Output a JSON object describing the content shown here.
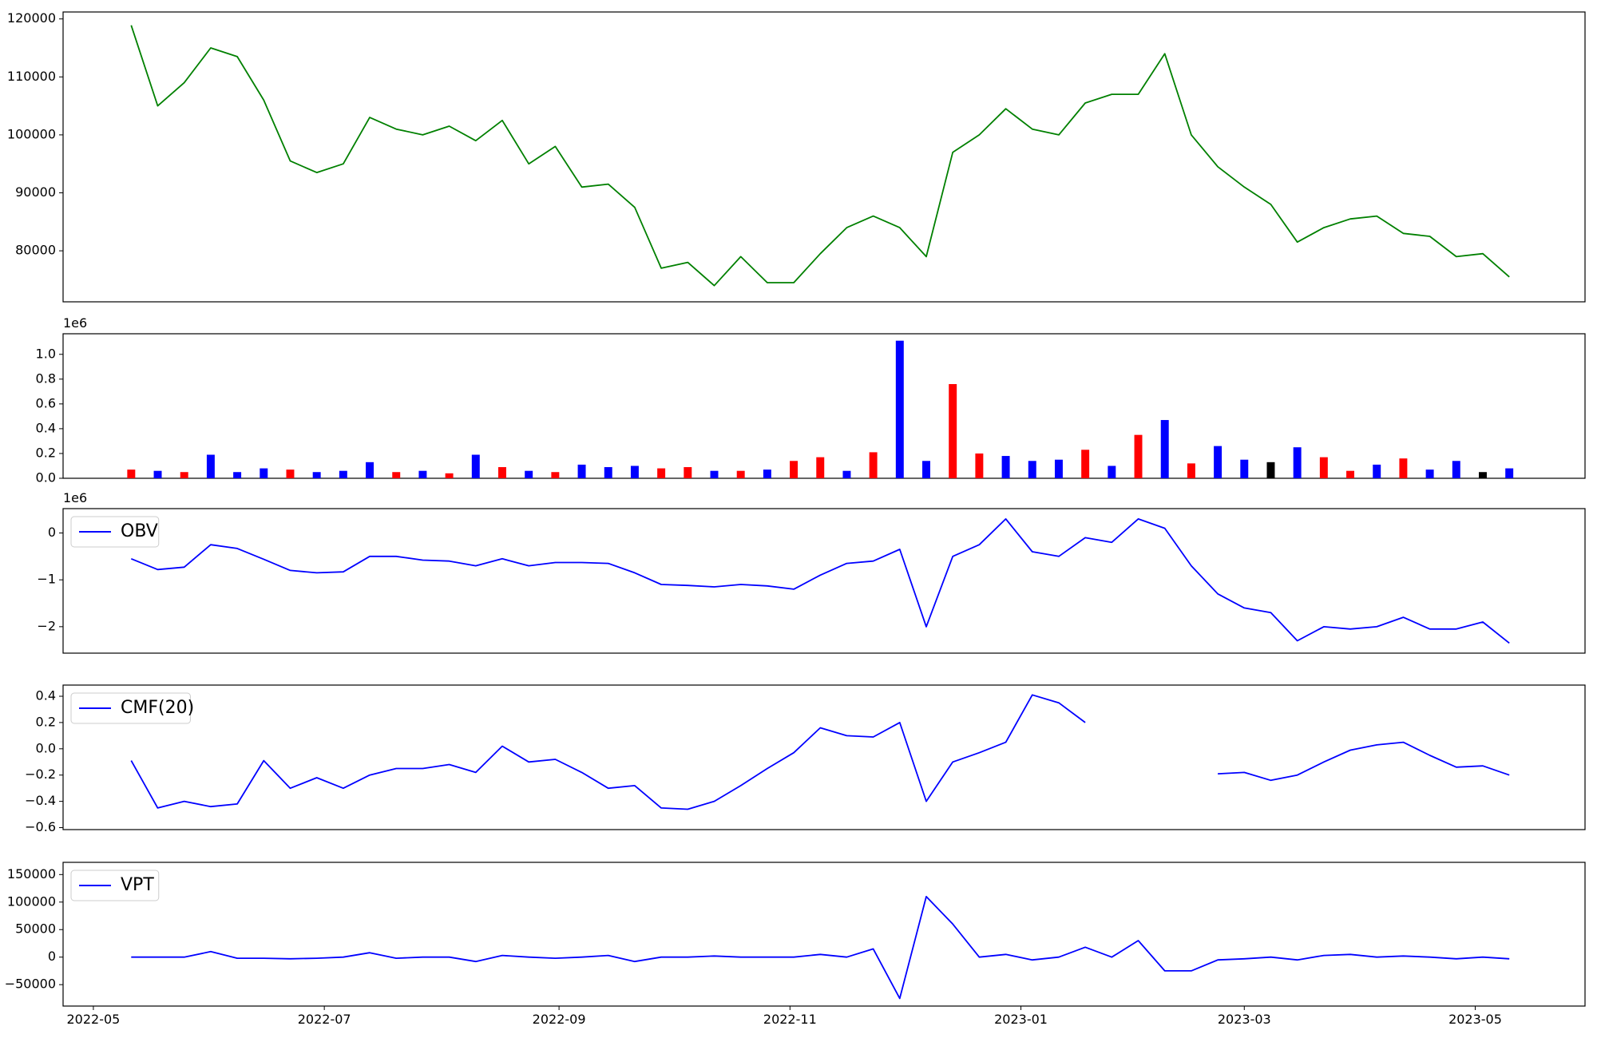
{
  "chart_data": [
    {
      "type": "line",
      "color": "green",
      "x": [
        "2022-05-11",
        "2022-05-18",
        "2022-05-25",
        "2022-06-01",
        "2022-06-08",
        "2022-06-15",
        "2022-06-22",
        "2022-06-29",
        "2022-07-06",
        "2022-07-13",
        "2022-07-20",
        "2022-07-27",
        "2022-08-03",
        "2022-08-10",
        "2022-08-17",
        "2022-08-24",
        "2022-08-31",
        "2022-09-07",
        "2022-09-14",
        "2022-09-21",
        "2022-09-28",
        "2022-10-05",
        "2022-10-12",
        "2022-10-19",
        "2022-10-26",
        "2022-11-02",
        "2022-11-09",
        "2022-11-16",
        "2022-11-23",
        "2022-11-30",
        "2022-12-07",
        "2022-12-14",
        "2022-12-21",
        "2022-12-28",
        "2023-01-04",
        "2023-01-11",
        "2023-01-18",
        "2023-01-25",
        "2023-02-01",
        "2023-02-08",
        "2023-02-15",
        "2023-02-22",
        "2023-03-01",
        "2023-03-08",
        "2023-03-15",
        "2023-03-22",
        "2023-03-29",
        "2023-04-05",
        "2023-04-12",
        "2023-04-19",
        "2023-04-26",
        "2023-05-03",
        "2023-05-10"
      ],
      "values": [
        118900,
        105000,
        109000,
        115000,
        113500,
        106000,
        95500,
        93500,
        95000,
        103000,
        101000,
        100000,
        101500,
        99000,
        102500,
        95000,
        98000,
        91000,
        91500,
        87500,
        77000,
        78000,
        74000,
        79000,
        74500,
        74500,
        79500,
        84000,
        86000,
        84000,
        79000,
        97000,
        100000,
        104500,
        101000,
        100000,
        105500,
        107000,
        107000,
        114000,
        100000,
        94500,
        91000,
        88000,
        81500,
        84000,
        85500,
        86000,
        83000,
        82500,
        79000,
        79500,
        75500
      ],
      "xlim": [
        "2022-04-23",
        "2023-05-30"
      ],
      "ylim": [
        71200,
        121200
      ],
      "yticks": [
        80000,
        90000,
        100000,
        110000,
        120000
      ]
    },
    {
      "type": "bar",
      "offset_label": "1e6",
      "x": [
        "2022-05-11",
        "2022-05-18",
        "2022-05-25",
        "2022-06-01",
        "2022-06-08",
        "2022-06-15",
        "2022-06-22",
        "2022-06-29",
        "2022-07-06",
        "2022-07-13",
        "2022-07-20",
        "2022-07-27",
        "2022-08-03",
        "2022-08-10",
        "2022-08-17",
        "2022-08-24",
        "2022-08-31",
        "2022-09-07",
        "2022-09-14",
        "2022-09-21",
        "2022-09-28",
        "2022-10-05",
        "2022-10-12",
        "2022-10-19",
        "2022-10-26",
        "2022-11-02",
        "2022-11-09",
        "2022-11-16",
        "2022-11-23",
        "2022-11-30",
        "2022-12-07",
        "2022-12-14",
        "2022-12-21",
        "2022-12-28",
        "2023-01-04",
        "2023-01-11",
        "2023-01-18",
        "2023-01-25",
        "2023-02-01",
        "2023-02-08",
        "2023-02-15",
        "2023-02-22",
        "2023-03-01",
        "2023-03-08",
        "2023-03-15",
        "2023-03-22",
        "2023-03-29",
        "2023-04-05",
        "2023-04-12",
        "2023-04-19",
        "2023-04-26",
        "2023-05-03",
        "2023-05-10"
      ],
      "values": [
        70000,
        60000,
        50000,
        190000,
        50000,
        80000,
        70000,
        50000,
        60000,
        130000,
        50000,
        60000,
        40000,
        190000,
        90000,
        60000,
        50000,
        110000,
        90000,
        100000,
        80000,
        90000,
        60000,
        60000,
        70000,
        140000,
        170000,
        60000,
        210000,
        1110000,
        140000,
        760000,
        200000,
        180000,
        140000,
        150000,
        230000,
        100000,
        350000,
        470000,
        120000,
        260000,
        150000,
        130000,
        250000,
        170000,
        60000,
        110000,
        160000,
        70000,
        140000,
        50000,
        80000
      ],
      "colors": [
        "red",
        "blue",
        "red",
        "blue",
        "blue",
        "blue",
        "red",
        "blue",
        "blue",
        "blue",
        "red",
        "blue",
        "red",
        "blue",
        "red",
        "blue",
        "red",
        "blue",
        "blue",
        "blue",
        "red",
        "red",
        "blue",
        "red",
        "blue",
        "red",
        "red",
        "blue",
        "red",
        "blue",
        "blue",
        "red",
        "red",
        "blue",
        "blue",
        "blue",
        "red",
        "blue",
        "red",
        "blue",
        "red",
        "blue",
        "blue",
        "black",
        "blue",
        "red",
        "red",
        "blue",
        "red",
        "blue",
        "blue",
        "black",
        "blue"
      ],
      "xlim": [
        "2022-04-23",
        "2023-05-30"
      ],
      "ylim": [
        0,
        1166000
      ],
      "yticks": [
        {
          "value": 0,
          "label": "0.0"
        },
        {
          "value": 200000,
          "label": "0.2"
        },
        {
          "value": 400000,
          "label": "0.4"
        },
        {
          "value": 600000,
          "label": "0.6"
        },
        {
          "value": 800000,
          "label": "0.8"
        },
        {
          "value": 1000000,
          "label": "1.0"
        }
      ]
    },
    {
      "type": "line",
      "offset_label": "1e6",
      "legend": "upper left",
      "x": [
        "2022-05-11",
        "2022-05-18",
        "2022-05-25",
        "2022-06-01",
        "2022-06-08",
        "2022-06-15",
        "2022-06-22",
        "2022-06-29",
        "2022-07-06",
        "2022-07-13",
        "2022-07-20",
        "2022-07-27",
        "2022-08-03",
        "2022-08-10",
        "2022-08-17",
        "2022-08-24",
        "2022-08-31",
        "2022-09-07",
        "2022-09-14",
        "2022-09-21",
        "2022-09-28",
        "2022-10-05",
        "2022-10-12",
        "2022-10-19",
        "2022-10-26",
        "2022-11-02",
        "2022-11-09",
        "2022-11-16",
        "2022-11-23",
        "2022-11-30",
        "2022-12-07",
        "2022-12-14",
        "2022-12-21",
        "2022-12-28",
        "2023-01-04",
        "2023-01-11",
        "2023-01-18",
        "2023-01-25",
        "2023-02-01",
        "2023-02-08",
        "2023-02-15",
        "2023-02-22",
        "2023-03-01",
        "2023-03-08",
        "2023-03-15",
        "2023-03-22",
        "2023-03-29",
        "2023-04-05",
        "2023-04-12",
        "2023-04-19",
        "2023-04-26",
        "2023-05-03",
        "2023-05-10"
      ],
      "series": [
        {
          "name": "OBV",
          "color": "blue",
          "values": [
            -550000,
            -780000,
            -730000,
            -250000,
            -330000,
            -560000,
            -800000,
            -850000,
            -830000,
            -500000,
            -500000,
            -580000,
            -600000,
            -700000,
            -550000,
            -700000,
            -630000,
            -630000,
            -650000,
            -850000,
            -1100000,
            -1120000,
            -1150000,
            -1100000,
            -1130000,
            -1200000,
            -900000,
            -650000,
            -600000,
            -350000,
            -2000000,
            -500000,
            -250000,
            300000,
            -400000,
            -500000,
            -100000,
            -200000,
            300000,
            100000,
            -700000,
            -1300000,
            -1600000,
            -1700000,
            -2300000,
            -2000000,
            -2050000,
            -2000000,
            -1800000,
            -2050000,
            -2050000,
            -1900000,
            -2350000
          ]
        }
      ],
      "xlim": [
        "2022-04-23",
        "2023-05-30"
      ],
      "ylim": [
        -2565000,
        520000
      ],
      "yticks": [
        {
          "value": -2000000,
          "label": "−2"
        },
        {
          "value": -1000000,
          "label": "−1"
        },
        0
      ]
    },
    {
      "type": "line",
      "legend": "upper left",
      "x": [
        "2022-05-11",
        "2022-05-18",
        "2022-05-25",
        "2022-06-01",
        "2022-06-08",
        "2022-06-15",
        "2022-06-22",
        "2022-06-29",
        "2022-07-06",
        "2022-07-13",
        "2022-07-20",
        "2022-07-27",
        "2022-08-03",
        "2022-08-10",
        "2022-08-17",
        "2022-08-24",
        "2022-08-31",
        "2022-09-07",
        "2022-09-14",
        "2022-09-21",
        "2022-09-28",
        "2022-10-05",
        "2022-10-12",
        "2022-10-19",
        "2022-10-26",
        "2022-11-02",
        "2022-11-09",
        "2022-11-16",
        "2022-11-23",
        "2022-11-30",
        "2022-12-07",
        "2022-12-14",
        "2022-12-21",
        "2022-12-28",
        "2023-01-04",
        "2023-01-11",
        "2023-01-18",
        "2023-01-25",
        "2023-02-01",
        "2023-02-08",
        "2023-02-15",
        "2023-02-22",
        "2023-03-01",
        "2023-03-08",
        "2023-03-15",
        "2023-03-22",
        "2023-03-29",
        "2023-04-05",
        "2023-04-12",
        "2023-04-19",
        "2023-04-26",
        "2023-05-03",
        "2023-05-10"
      ],
      "series": [
        {
          "name": "CMF(20)",
          "color": "blue",
          "values": [
            -0.09,
            -0.45,
            -0.4,
            -0.44,
            -0.42,
            -0.09,
            -0.3,
            -0.22,
            -0.3,
            -0.2,
            -0.15,
            -0.15,
            -0.12,
            -0.18,
            0.02,
            -0.1,
            -0.08,
            -0.18,
            -0.3,
            -0.28,
            -0.45,
            -0.46,
            -0.4,
            -0.28,
            -0.15,
            -0.03,
            0.16,
            0.1,
            0.09,
            0.2,
            -0.4,
            -0.1,
            -0.03,
            0.05,
            0.41,
            0.35,
            0.2,
            null,
            null,
            null,
            null,
            -0.19,
            -0.18,
            -0.24,
            -0.2,
            -0.1,
            -0.01,
            0.03,
            0.05,
            -0.05,
            -0.14,
            -0.13,
            -0.2
          ]
        }
      ],
      "xlim": [
        "2022-04-23",
        "2023-05-30"
      ],
      "ylim": [
        -0.615,
        0.485
      ],
      "yticks": [
        {
          "value": -0.6,
          "label": "−0.6"
        },
        {
          "value": -0.4,
          "label": "−0.4"
        },
        {
          "value": -0.2,
          "label": "−0.2"
        },
        {
          "value": 0,
          "label": "0.0"
        },
        {
          "value": 0.2,
          "label": "0.2"
        },
        {
          "value": 0.4,
          "label": "0.4"
        }
      ]
    },
    {
      "type": "line",
      "legend": "upper left",
      "x": [
        "2022-05-11",
        "2022-05-18",
        "2022-05-25",
        "2022-06-01",
        "2022-06-08",
        "2022-06-15",
        "2022-06-22",
        "2022-06-29",
        "2022-07-06",
        "2022-07-13",
        "2022-07-20",
        "2022-07-27",
        "2022-08-03",
        "2022-08-10",
        "2022-08-17",
        "2022-08-24",
        "2022-08-31",
        "2022-09-07",
        "2022-09-14",
        "2022-09-21",
        "2022-09-28",
        "2022-10-05",
        "2022-10-12",
        "2022-10-19",
        "2022-10-26",
        "2022-11-02",
        "2022-11-09",
        "2022-11-16",
        "2022-11-23",
        "2022-11-30",
        "2022-12-07",
        "2022-12-14",
        "2022-12-21",
        "2022-12-28",
        "2023-01-04",
        "2023-01-11",
        "2023-01-18",
        "2023-01-25",
        "2023-02-01",
        "2023-02-08",
        "2023-02-15",
        "2023-02-22",
        "2023-03-01",
        "2023-03-08",
        "2023-03-15",
        "2023-03-22",
        "2023-03-29",
        "2023-04-05",
        "2023-04-12",
        "2023-04-19",
        "2023-04-26",
        "2023-05-03",
        "2023-05-10"
      ],
      "series": [
        {
          "name": "VPT",
          "color": "blue",
          "values": [
            0,
            0,
            0,
            10000,
            -2000,
            -2000,
            -3000,
            -2000,
            0,
            8000,
            -2000,
            0,
            0,
            -8000,
            3000,
            0,
            -2000,
            0,
            3000,
            -8000,
            0,
            0,
            2000,
            0,
            0,
            0,
            5000,
            0,
            15000,
            -75000,
            110000,
            60000,
            0,
            5000,
            -5000,
            0,
            18000,
            0,
            30000,
            -25000,
            -25000,
            -5000,
            -3000,
            0,
            -5000,
            3000,
            5000,
            0,
            2000,
            0,
            -3000,
            0,
            -3000
          ]
        }
      ],
      "xlim": [
        "2022-04-23",
        "2023-05-30"
      ],
      "ylim": [
        -88900,
        172200
      ],
      "yticks": [
        {
          "value": -50000,
          "label": "−50000"
        },
        0,
        50000,
        100000,
        150000
      ],
      "xticks": [
        {
          "value": "2022-05-01",
          "label": "2022-05"
        },
        {
          "value": "2022-07-01",
          "label": "2022-07"
        },
        {
          "value": "2022-09-01",
          "label": "2022-09"
        },
        {
          "value": "2022-11-01",
          "label": "2022-11"
        },
        {
          "value": "2023-01-01",
          "label": "2023-01"
        },
        {
          "value": "2023-03-01",
          "label": "2023-03"
        },
        {
          "value": "2023-05-01",
          "label": "2023-05"
        }
      ]
    }
  ]
}
